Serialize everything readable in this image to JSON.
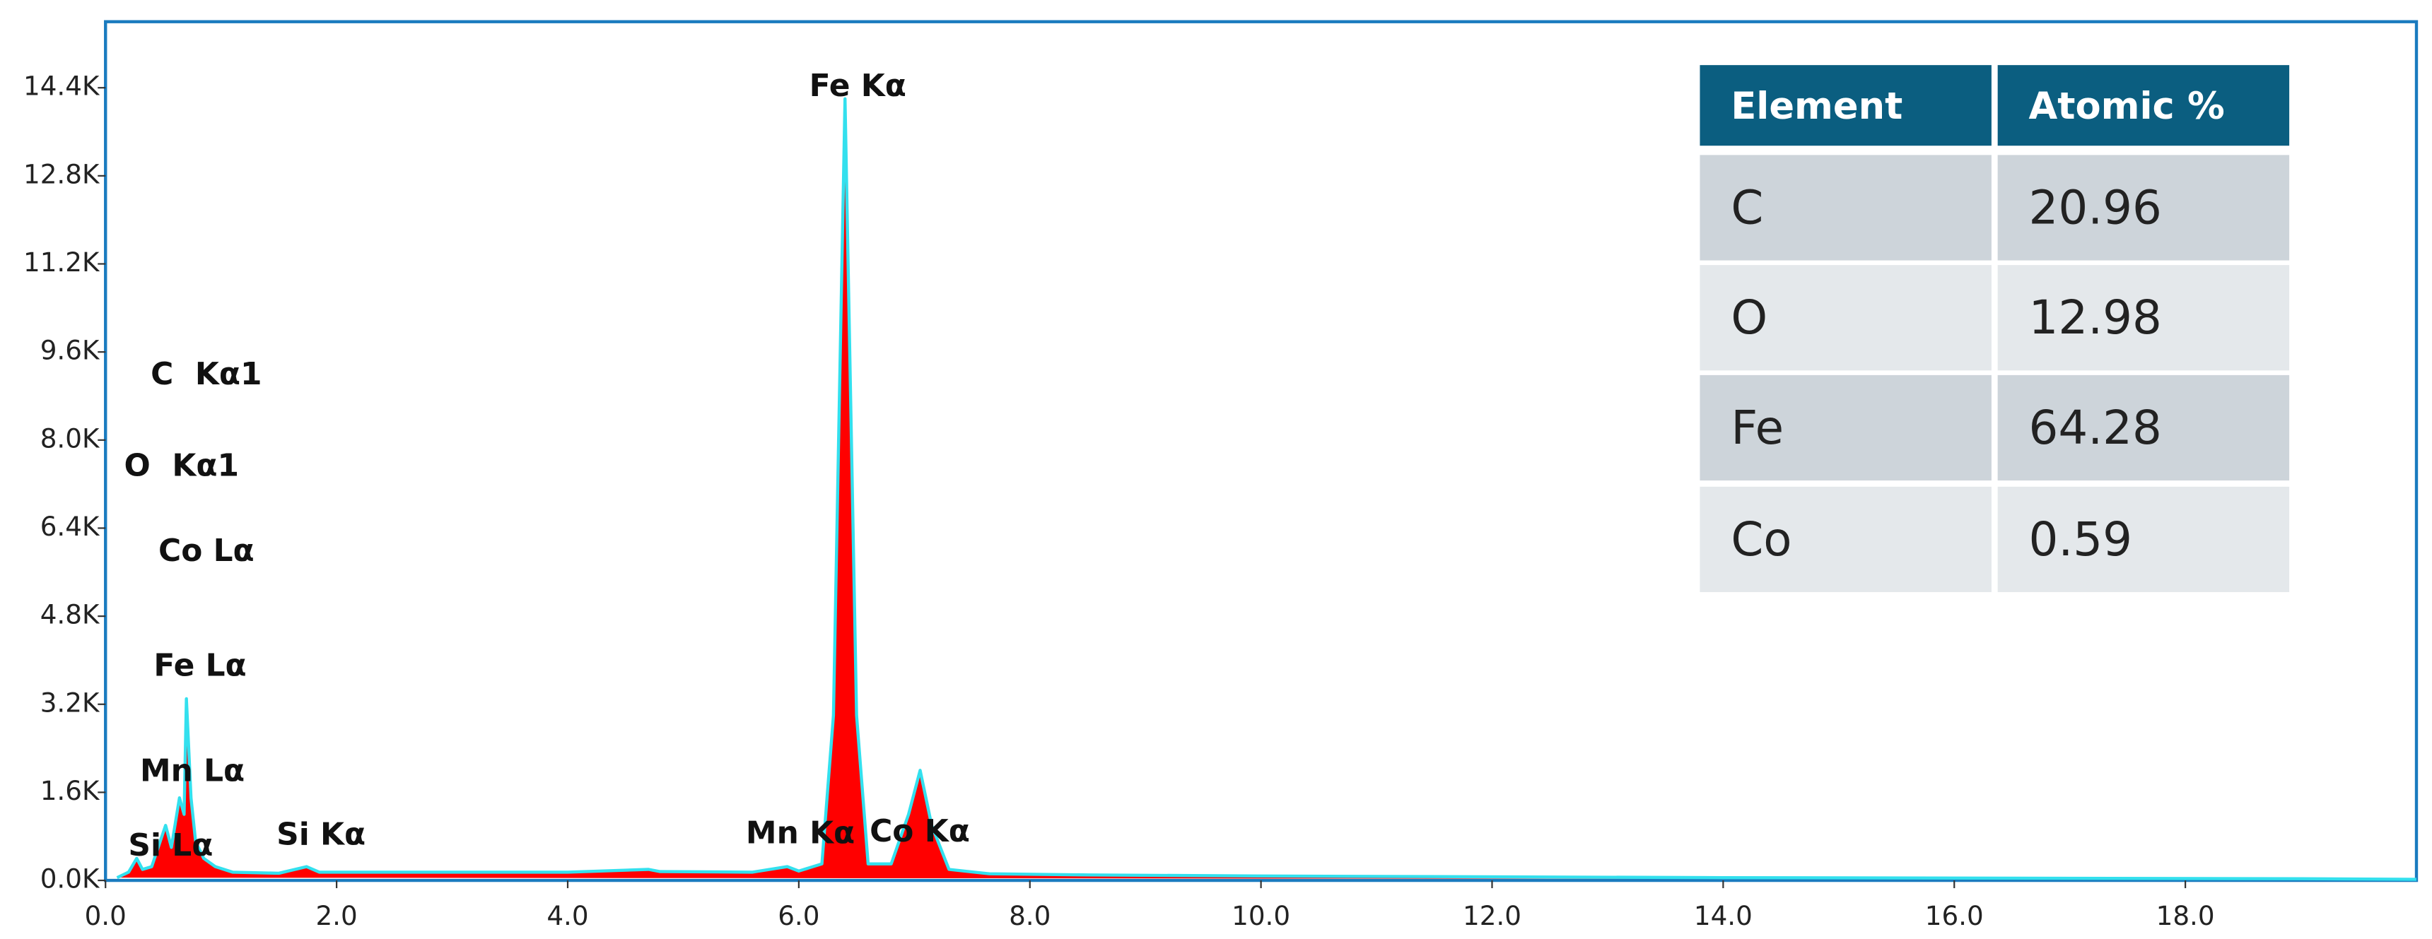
{
  "chart_data": {
    "type": "area",
    "x": [
      0.1,
      0.2,
      0.27,
      0.32,
      0.4,
      0.52,
      0.57,
      0.64,
      0.68,
      0.7,
      0.74,
      0.78,
      0.85,
      0.95,
      1.1,
      1.5,
      1.74,
      1.85,
      3.0,
      4.0,
      4.7,
      4.8,
      5.6,
      5.9,
      6.0,
      6.2,
      6.3,
      6.4,
      6.5,
      6.6,
      6.8,
      6.95,
      7.05,
      7.15,
      7.3,
      7.65,
      8.5,
      10.0,
      14.0,
      19.0,
      20.0
    ],
    "values": [
      50,
      150,
      400,
      200,
      250,
      1000,
      600,
      1500,
      1200,
      3300,
      1500,
      700,
      400,
      250,
      150,
      130,
      250,
      150,
      150,
      150,
      200,
      160,
      150,
      250,
      170,
      300,
      3000,
      14200,
      3000,
      300,
      300,
      1200,
      2000,
      1000,
      200,
      120,
      100,
      80,
      50,
      30,
      20
    ],
    "color": "#ff0000",
    "line_color": "#33e0ee",
    "xlim": [
      0,
      20
    ],
    "xticks": [
      {
        "value": 0,
        "label": "0.0"
      },
      {
        "value": 2,
        "label": "2.0"
      },
      {
        "value": 4,
        "label": "4.0"
      },
      {
        "value": 6,
        "label": "6.0"
      },
      {
        "value": 8,
        "label": "8.0"
      },
      {
        "value": 10,
        "label": "10.0"
      },
      {
        "value": 12,
        "label": "12.0"
      },
      {
        "value": 14,
        "label": "14.0"
      },
      {
        "value": 16,
        "label": "16.0"
      },
      {
        "value": 18,
        "label": "18.0"
      }
    ],
    "ylim": [
      0,
      15600
    ],
    "yticks": [
      {
        "value": 0,
        "label": "0.0K"
      },
      {
        "value": 1600,
        "label": "1.6K"
      },
      {
        "value": 3200,
        "label": "3.2K"
      },
      {
        "value": 4800,
        "label": "4.8K"
      },
      {
        "value": 6400,
        "label": "6.4K"
      },
      {
        "value": 8000,
        "label": "8.0K"
      },
      {
        "value": 9600,
        "label": "9.6K"
      },
      {
        "value": 11200,
        "label": "11.2K"
      },
      {
        "value": 12800,
        "label": "12.8K"
      },
      {
        "value": 14400,
        "label": "14.4K"
      }
    ],
    "annotations": [
      "Fe Kα",
      "C  Kα1",
      "O  Kα1",
      "Co Lα",
      "Fe Lα",
      "Mn Lα",
      "Si Lα",
      "Si Kα",
      "Mn Kα",
      "Co Kα"
    ]
  },
  "table": {
    "headers": [
      "Element",
      "Atomic %"
    ],
    "rows": [
      [
        "C",
        20.96
      ],
      [
        "O",
        12.98
      ],
      [
        "Fe",
        64.28
      ],
      [
        "Co",
        0.59
      ]
    ]
  }
}
